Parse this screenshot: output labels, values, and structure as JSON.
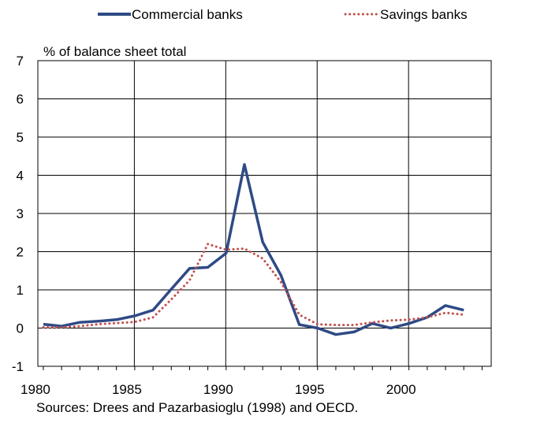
{
  "chart_data": {
    "type": "line",
    "ylabel": "% of balance sheet total",
    "xlim": [
      1979.7,
      2004.5
    ],
    "ylim": [
      -1,
      7
    ],
    "y_ticks": [
      -1,
      0,
      1,
      2,
      3,
      4,
      5,
      6,
      7
    ],
    "x_ticks": [
      1980,
      1985,
      1990,
      1995,
      2000
    ],
    "grid": true,
    "legend_position": "top",
    "series": [
      {
        "name": "Commercial banks",
        "color": "#2f4a85",
        "style": "solid",
        "x": [
          1980,
          1981,
          1982,
          1983,
          1984,
          1985,
          1986,
          1987,
          1988,
          1989,
          1990,
          1991,
          1992,
          1993,
          1994,
          1995,
          1996,
          1997,
          1998,
          1999,
          2000,
          2001,
          2002,
          2003
        ],
        "values": [
          0.1,
          0.05,
          0.15,
          0.18,
          0.22,
          0.32,
          0.47,
          1.02,
          1.56,
          1.59,
          1.96,
          4.28,
          2.25,
          1.38,
          0.09,
          0.0,
          -0.17,
          -0.1,
          0.12,
          0.0,
          0.12,
          0.28,
          0.59,
          0.47
        ]
      },
      {
        "name": "Savings banks",
        "color": "#c0504d",
        "style": "dotted",
        "x": [
          1980,
          1981,
          1982,
          1983,
          1984,
          1985,
          1986,
          1987,
          1988,
          1989,
          1990,
          1991,
          1992,
          1993,
          1994,
          1995,
          1996,
          1997,
          1998,
          1999,
          2000,
          2001,
          2002,
          2003
        ],
        "values": [
          0.02,
          0.02,
          0.05,
          0.1,
          0.13,
          0.16,
          0.28,
          0.75,
          1.25,
          2.2,
          2.05,
          2.08,
          1.82,
          1.2,
          0.35,
          0.1,
          0.08,
          0.08,
          0.15,
          0.2,
          0.22,
          0.28,
          0.4,
          0.35
        ]
      }
    ]
  },
  "source": "Sources: Drees and Pazarbasioglu (1998) and OECD."
}
